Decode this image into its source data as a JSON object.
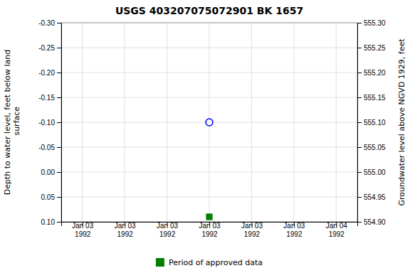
{
  "chart_data": {
    "type": "scatter",
    "title": "USGS 403207075072901 BK  1657",
    "y_label": "Depth to water level, feet below land\n surface",
    "y2_label": "Groundwater level above NGVD 1929, feet",
    "categories": [
      "Jan 03\n1992",
      "Jan 03\n1992",
      "Jan 03\n1992",
      "Jan 03\n1992",
      "Jan 03\n1992",
      "Jan 03\n1992",
      "Jan 04\n1992"
    ],
    "series": [
      {
        "color": "blue",
        "marker": "open_circle",
        "values": [
          null,
          null,
          null,
          -0.1,
          null,
          null,
          null
        ]
      },
      {
        "name": "Period of approved data",
        "color": "green",
        "marker": "square",
        "values": [
          null,
          null,
          null,
          0.09,
          null,
          null,
          null
        ]
      }
    ],
    "ylim": [
      0.1,
      -0.3
    ],
    "yticks": [
      {
        "value": -0.3,
        "label": "-0.30"
      },
      -0.25,
      {
        "value": -0.2,
        "label": "-0.20"
      },
      -0.15,
      {
        "value": -0.1,
        "label": "-0.10"
      },
      -0.05,
      {
        "value": 0.0,
        "label": "0.00"
      },
      0.05,
      {
        "value": 0.1,
        "label": "0.10"
      }
    ],
    "y2lim": [
      554.9,
      555.3
    ],
    "y2ticks": [
      {
        "value": 554.9,
        "label": "554.90"
      },
      554.95,
      {
        "value": 555.0,
        "label": "555.00"
      },
      555.05,
      {
        "value": 555.1,
        "label": "555.10"
      },
      555.15,
      {
        "value": 555.2,
        "label": "555.20"
      },
      555.25,
      {
        "value": 555.3,
        "label": "555.30"
      }
    ],
    "grid": true,
    "legend": "bottom"
  }
}
